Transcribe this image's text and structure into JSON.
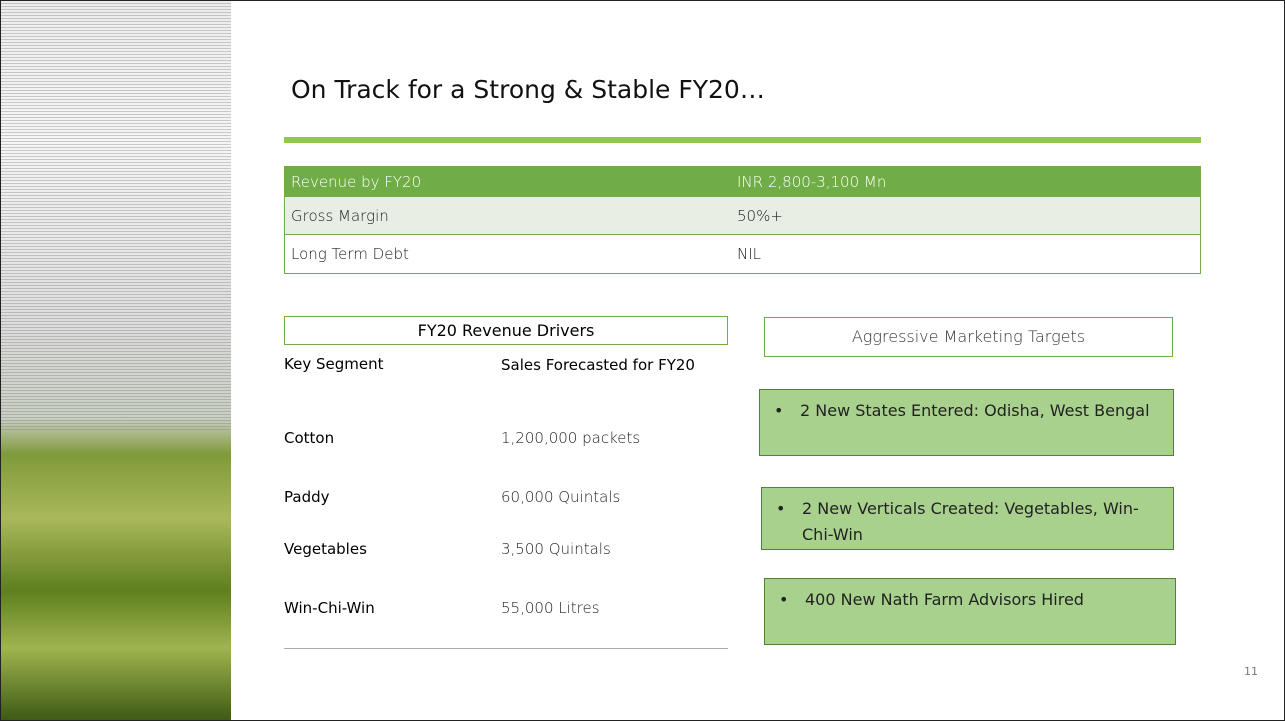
{
  "title": "On Track for a Strong & Stable FY20…",
  "summary_table": {
    "rows": [
      [
        "Revenue by FY20",
        "INR 2,800-3,100 Mn"
      ],
      [
        "Gross Margin",
        "50%+"
      ],
      [
        "Long Term Debt",
        "NIL"
      ]
    ]
  },
  "revenue_drivers": {
    "title": "FY20 Revenue Drivers",
    "header": [
      "Key Segment",
      "Sales Forecasted for FY20"
    ],
    "rows": [
      [
        "Cotton",
        "1,200,000 packets"
      ],
      [
        "Paddy",
        "60,000 Quintals"
      ],
      [
        "Vegetables",
        "3,500 Quintals"
      ],
      [
        "Win-Chi-Win",
        "55,000 Litres"
      ]
    ]
  },
  "marketing_targets": {
    "title": "Aggressive Marketing Targets",
    "items": [
      "2 New States Entered: Odisha, West Bengal",
      "2 New Verticals Created: Vegetables, Win-Chi-Win",
      "400 New Nath Farm Advisors Hired"
    ]
  },
  "page_number": "11"
}
